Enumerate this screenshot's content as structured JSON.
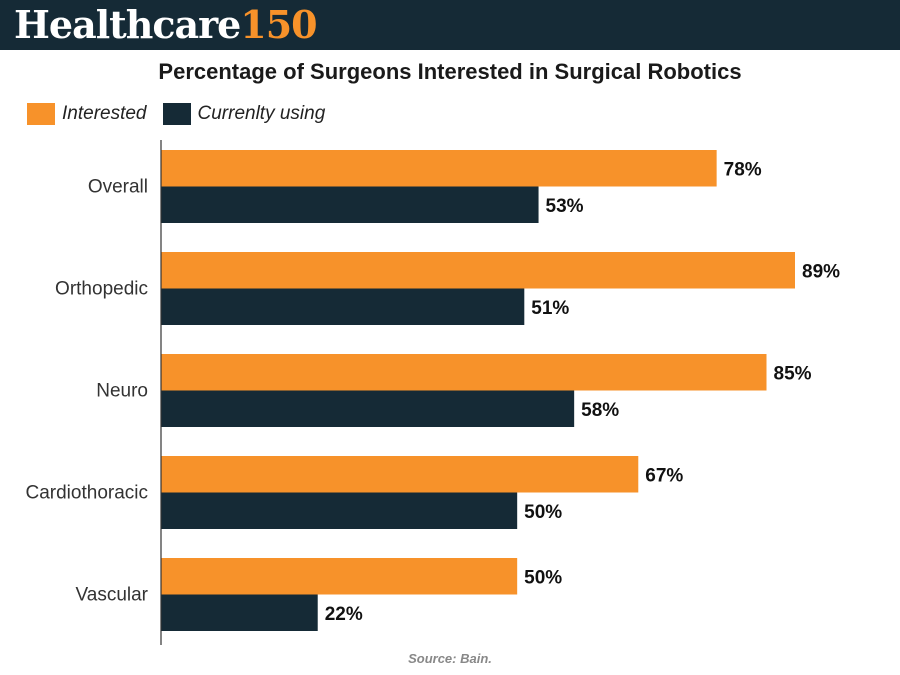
{
  "header": {
    "logo_text": "Healthcare",
    "logo_number": "150"
  },
  "colors": {
    "banner": "#152a36",
    "interested": "#f7922a",
    "using": "#152a36"
  },
  "chart_data": {
    "type": "bar",
    "orientation": "horizontal",
    "title": "Percentage of Surgeons Interested in Surgical Robotics",
    "categories": [
      "Overall",
      "Orthopedic",
      "Neuro",
      "Cardiothoracic",
      "Vascular"
    ],
    "series": [
      {
        "name": "Interested",
        "values": [
          78,
          89,
          85,
          67,
          50
        ],
        "labels": [
          "78%",
          "89%",
          "85%",
          "67%",
          "50%"
        ]
      },
      {
        "name": "Currenlty using",
        "values": [
          53,
          51,
          58,
          50,
          22
        ],
        "labels": [
          "53%",
          "51%",
          "58%",
          "50%",
          "22%"
        ]
      }
    ],
    "xlim": [
      0,
      100
    ],
    "grid": false,
    "legend": "top-left"
  },
  "footer": {
    "source": "Source: Bain."
  }
}
